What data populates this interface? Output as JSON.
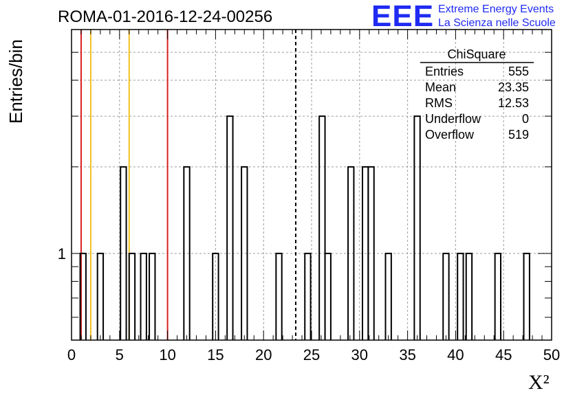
{
  "chart_data": {
    "type": "bar",
    "title": "ROMA-01-2016-12-24-00256",
    "xlabel": "X²",
    "ylabel": "Entries/bin",
    "xlim": [
      0,
      50
    ],
    "y_scale": "log",
    "ylim": [
      0.5,
      6
    ],
    "bin_width": 0.6,
    "grid": true,
    "x_ticks": [
      0,
      5,
      10,
      15,
      20,
      25,
      30,
      35,
      40,
      45,
      50
    ],
    "y_tick_labels": [
      "1"
    ],
    "bins": [
      {
        "x": 0.9,
        "count": 1
      },
      {
        "x": 2.7,
        "count": 1
      },
      {
        "x": 5.1,
        "count": 2
      },
      {
        "x": 6.0,
        "count": 1
      },
      {
        "x": 7.2,
        "count": 1
      },
      {
        "x": 8.1,
        "count": 1
      },
      {
        "x": 11.7,
        "count": 2
      },
      {
        "x": 14.7,
        "count": 1
      },
      {
        "x": 16.2,
        "count": 3
      },
      {
        "x": 17.7,
        "count": 2
      },
      {
        "x": 21.3,
        "count": 1
      },
      {
        "x": 24.3,
        "count": 1
      },
      {
        "x": 25.8,
        "count": 3
      },
      {
        "x": 26.4,
        "count": 1
      },
      {
        "x": 28.8,
        "count": 2
      },
      {
        "x": 30.3,
        "count": 2
      },
      {
        "x": 30.9,
        "count": 2
      },
      {
        "x": 32.7,
        "count": 1
      },
      {
        "x": 35.7,
        "count": 3
      },
      {
        "x": 38.7,
        "count": 1
      },
      {
        "x": 40.2,
        "count": 1
      },
      {
        "x": 41.1,
        "count": 1
      },
      {
        "x": 44.1,
        "count": 1
      },
      {
        "x": 47.1,
        "count": 1
      }
    ],
    "vertical_lines": [
      {
        "x": 1.0,
        "color": "#d62020",
        "style": "solid"
      },
      {
        "x": 2.0,
        "color": "#f0c020",
        "style": "solid"
      },
      {
        "x": 6.0,
        "color": "#f0c020",
        "style": "solid"
      },
      {
        "x": 10.0,
        "color": "#d62020",
        "style": "solid"
      },
      {
        "x": 23.35,
        "color": "#000000",
        "style": "dashed"
      }
    ],
    "stats_box": {
      "title": "ChiSquare",
      "rows": [
        {
          "label": "Entries",
          "value": "555"
        },
        {
          "label": "Mean",
          "value": "23.35"
        },
        {
          "label": "RMS",
          "value": "12.53"
        },
        {
          "label": "Underflow",
          "value": "0"
        },
        {
          "label": "Overflow",
          "value": "519"
        }
      ]
    }
  },
  "logo": {
    "mark": "EEE",
    "line1": "Extreme Energy Events",
    "line2": "La Scienza nelle Scuole"
  }
}
